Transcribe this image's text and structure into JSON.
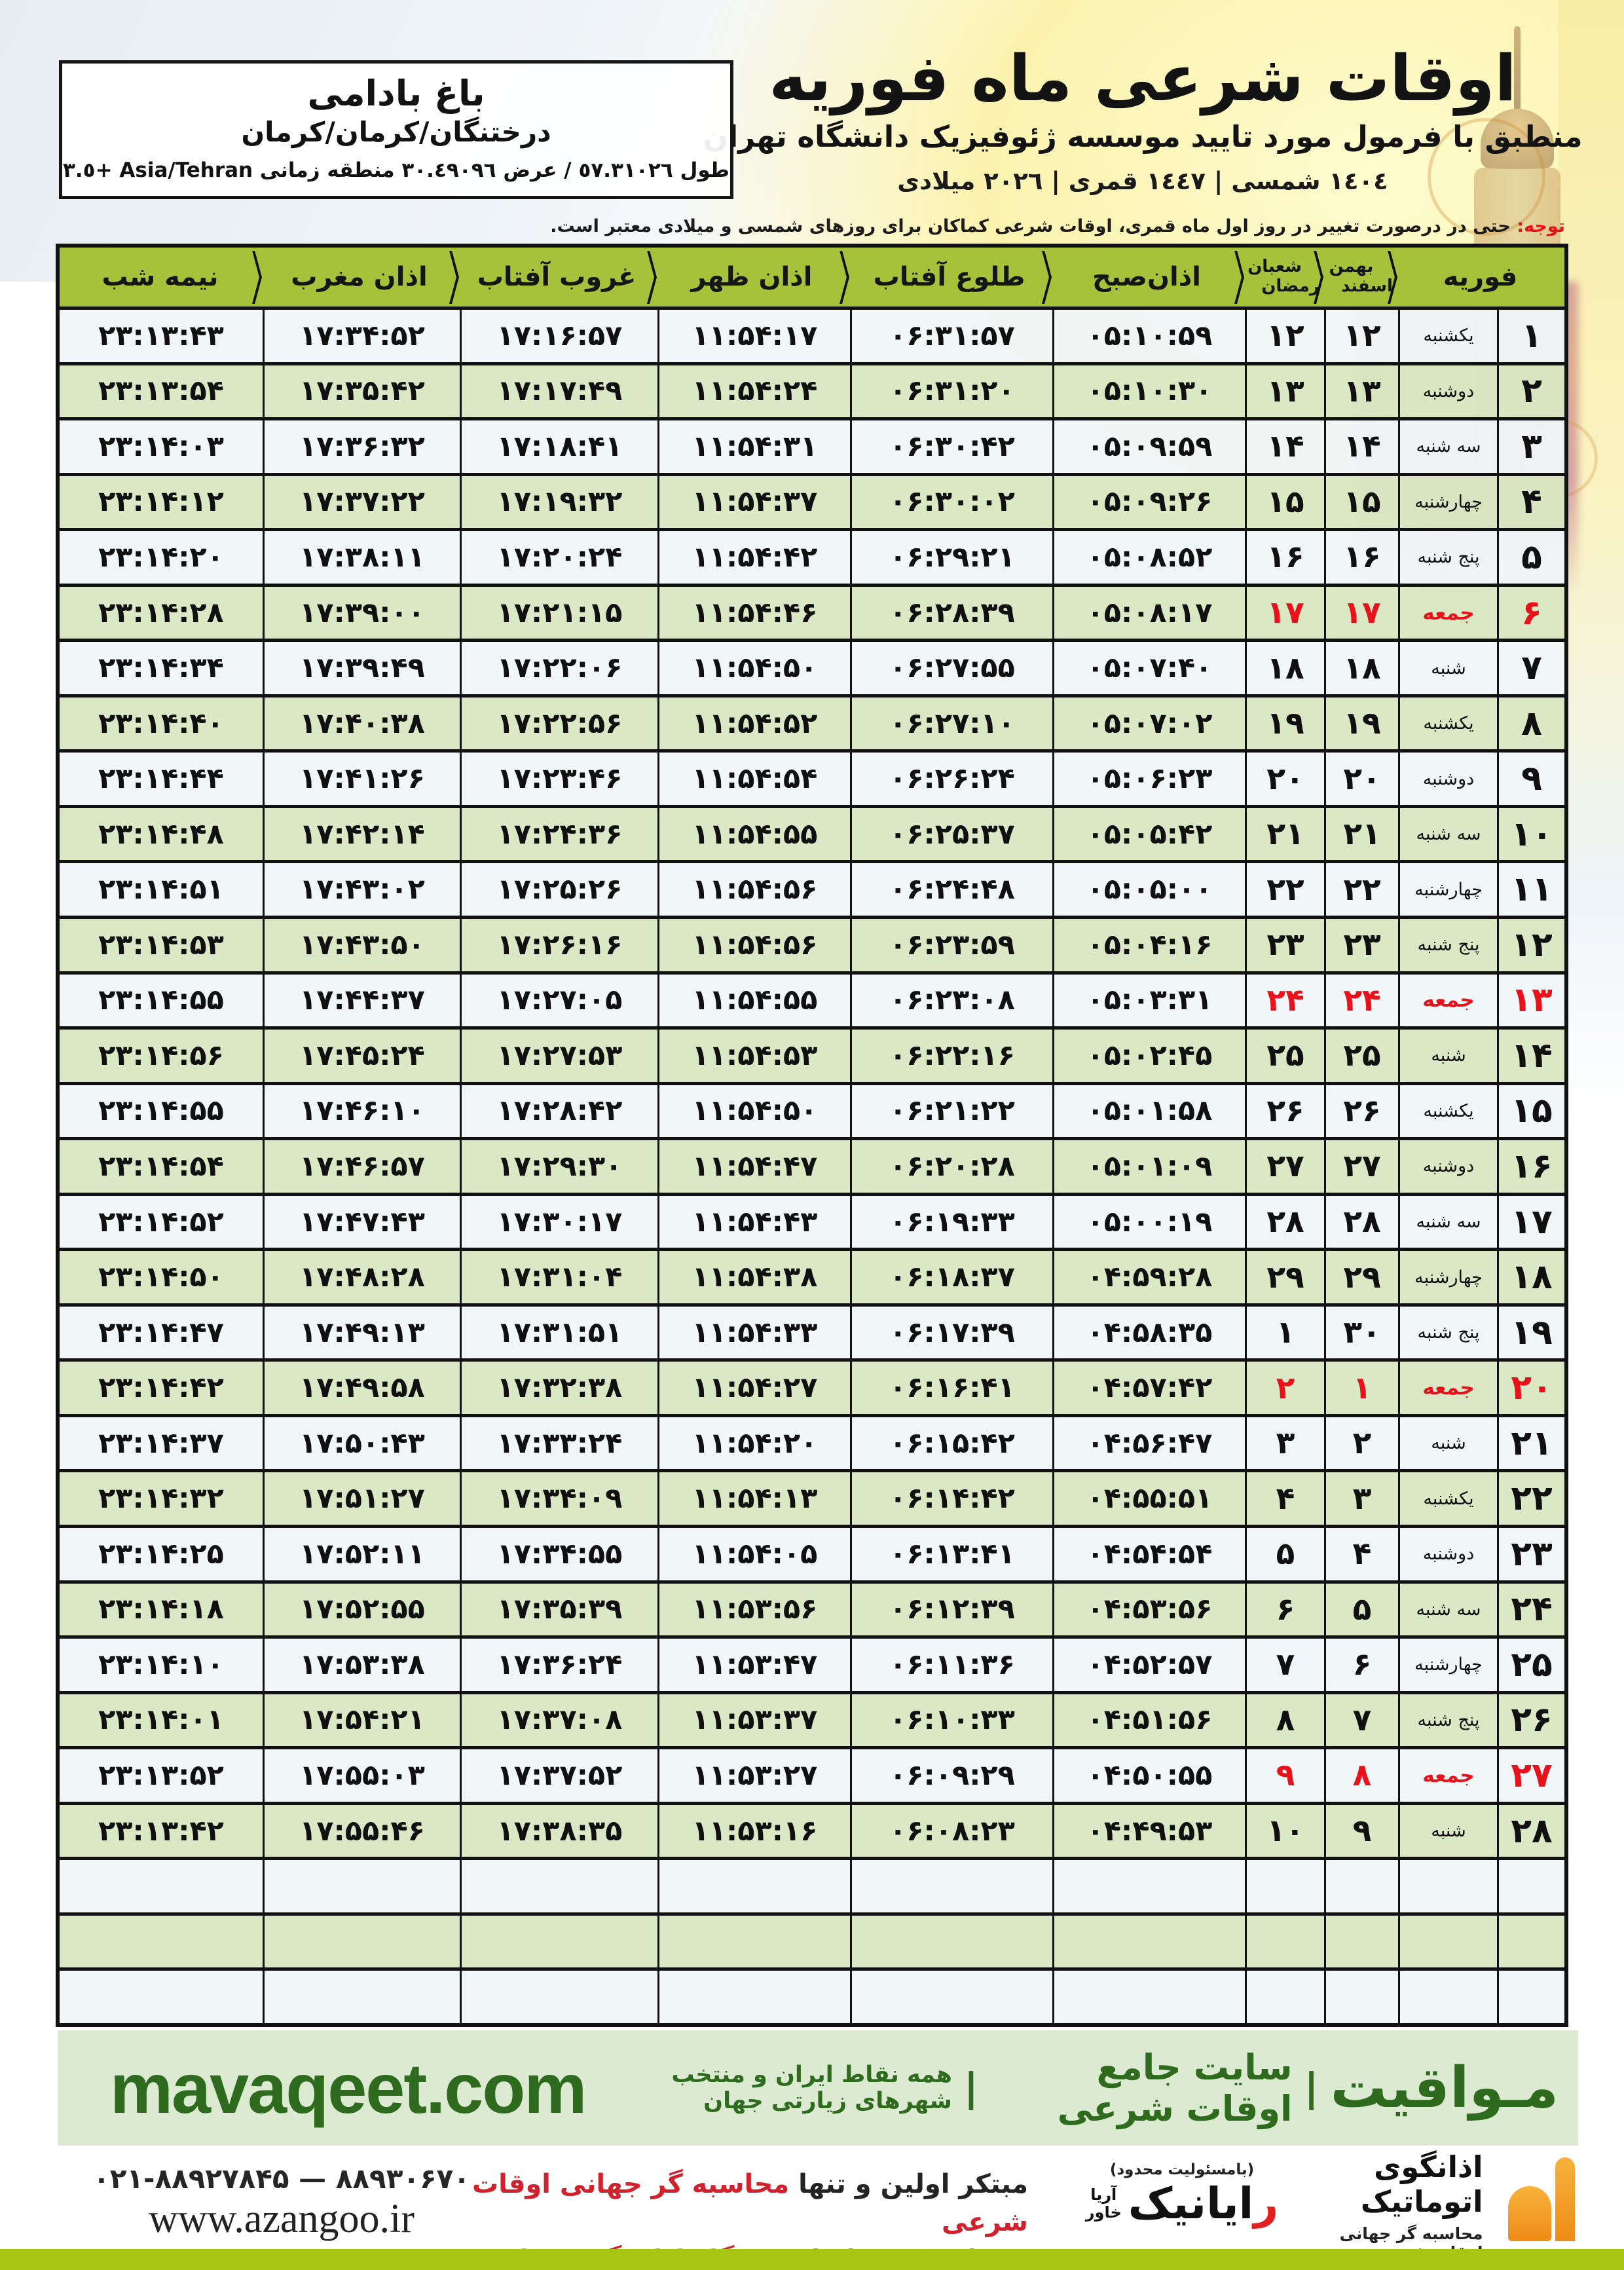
{
  "header": {
    "title": "اوقات شرعی ماه فوریه",
    "subtitle": "منطبق با فرمول مورد تایید موسسه ژئوفیزیک دانشگاه تهران",
    "date_line": "١٤٠٤ شمسی | ١٤٤٧ قمری | ٢٠٢٦ میلادی",
    "location": {
      "name": "باغ بادامی",
      "region": "درختنگان/کرمان/کرمان",
      "coords": "طول ٥٧.٣١٠٢٦ / عرض ٣٠.٤٩٠٩٦ منطقه زمانی Asia/Tehran +٣.٥"
    },
    "note_prefix": "توجه:",
    "note_text": " حتی در درصورت تغییر در روز اول ماه قمری، اوقات شرعی کماکان برای روزهای شمسی و میلادی معتبر است."
  },
  "table": {
    "header_cells": [
      {
        "id": "february",
        "label": "فوریه"
      },
      {
        "id": "persian-month",
        "label": "بهمن",
        "label2": "اسفند"
      },
      {
        "id": "hijri-month",
        "label": "شعبان",
        "label2": "رمضان"
      },
      {
        "id": "azan-sobh",
        "label": "اذان‌صبح"
      },
      {
        "id": "tolu-aftab",
        "label": "طلوع آفتاب"
      },
      {
        "id": "azan-zohr",
        "label": "اذان ظهر"
      },
      {
        "id": "ghorub-aftab",
        "label": "غروب آفتاب"
      },
      {
        "id": "azan-maghreb",
        "label": "اذان مغرب"
      },
      {
        "id": "nime-shab",
        "label": "نیمه شب"
      }
    ],
    "empty_row_count": 3,
    "rows": [
      {
        "d": "۱",
        "w": "یکشنبه",
        "p": "۱۲",
        "h": "۱۲",
        "sobh": "۰۵:۱۰:۵۹",
        "tolu": "۰۶:۳۱:۵۷",
        "zohr": "۱۱:۵۴:۱۷",
        "ghorub": "۱۷:۱۶:۵۷",
        "maghreb": "۱۷:۳۴:۵۲",
        "nime": "۲۳:۱۳:۴۳",
        "friday": false
      },
      {
        "d": "۲",
        "w": "دوشنبه",
        "p": "۱۳",
        "h": "۱۳",
        "sobh": "۰۵:۱۰:۳۰",
        "tolu": "۰۶:۳۱:۲۰",
        "zohr": "۱۱:۵۴:۲۴",
        "ghorub": "۱۷:۱۷:۴۹",
        "maghreb": "۱۷:۳۵:۴۲",
        "nime": "۲۳:۱۳:۵۴",
        "friday": false
      },
      {
        "d": "۳",
        "w": "سه شنبه",
        "p": "۱۴",
        "h": "۱۴",
        "sobh": "۰۵:۰۹:۵۹",
        "tolu": "۰۶:۳۰:۴۲",
        "zohr": "۱۱:۵۴:۳۱",
        "ghorub": "۱۷:۱۸:۴۱",
        "maghreb": "۱۷:۳۶:۳۲",
        "nime": "۲۳:۱۴:۰۳",
        "friday": false
      },
      {
        "d": "۴",
        "w": "چهارشنبه",
        "p": "۱۵",
        "h": "۱۵",
        "sobh": "۰۵:۰۹:۲۶",
        "tolu": "۰۶:۳۰:۰۲",
        "zohr": "۱۱:۵۴:۳۷",
        "ghorub": "۱۷:۱۹:۳۲",
        "maghreb": "۱۷:۳۷:۲۲",
        "nime": "۲۳:۱۴:۱۲",
        "friday": false
      },
      {
        "d": "۵",
        "w": "پنج شنبه",
        "p": "۱۶",
        "h": "۱۶",
        "sobh": "۰۵:۰۸:۵۲",
        "tolu": "۰۶:۲۹:۲۱",
        "zohr": "۱۱:۵۴:۴۲",
        "ghorub": "۱۷:۲۰:۲۴",
        "maghreb": "۱۷:۳۸:۱۱",
        "nime": "۲۳:۱۴:۲۰",
        "friday": false
      },
      {
        "d": "۶",
        "w": "جمعه",
        "p": "۱۷",
        "h": "۱۷",
        "sobh": "۰۵:۰۸:۱۷",
        "tolu": "۰۶:۲۸:۳۹",
        "zohr": "۱۱:۵۴:۴۶",
        "ghorub": "۱۷:۲۱:۱۵",
        "maghreb": "۱۷:۳۹:۰۰",
        "nime": "۲۳:۱۴:۲۸",
        "friday": true
      },
      {
        "d": "۷",
        "w": "شنبه",
        "p": "۱۸",
        "h": "۱۸",
        "sobh": "۰۵:۰۷:۴۰",
        "tolu": "۰۶:۲۷:۵۵",
        "zohr": "۱۱:۵۴:۵۰",
        "ghorub": "۱۷:۲۲:۰۶",
        "maghreb": "۱۷:۳۹:۴۹",
        "nime": "۲۳:۱۴:۳۴",
        "friday": false
      },
      {
        "d": "۸",
        "w": "یکشنبه",
        "p": "۱۹",
        "h": "۱۹",
        "sobh": "۰۵:۰۷:۰۲",
        "tolu": "۰۶:۲۷:۱۰",
        "zohr": "۱۱:۵۴:۵۲",
        "ghorub": "۱۷:۲۲:۵۶",
        "maghreb": "۱۷:۴۰:۳۸",
        "nime": "۲۳:۱۴:۴۰",
        "friday": false
      },
      {
        "d": "۹",
        "w": "دوشنبه",
        "p": "۲۰",
        "h": "۲۰",
        "sobh": "۰۵:۰۶:۲۳",
        "tolu": "۰۶:۲۶:۲۴",
        "zohr": "۱۱:۵۴:۵۴",
        "ghorub": "۱۷:۲۳:۴۶",
        "maghreb": "۱۷:۴۱:۲۶",
        "nime": "۲۳:۱۴:۴۴",
        "friday": false
      },
      {
        "d": "۱۰",
        "w": "سه شنبه",
        "p": "۲۱",
        "h": "۲۱",
        "sobh": "۰۵:۰۵:۴۲",
        "tolu": "۰۶:۲۵:۳۷",
        "zohr": "۱۱:۵۴:۵۵",
        "ghorub": "۱۷:۲۴:۳۶",
        "maghreb": "۱۷:۴۲:۱۴",
        "nime": "۲۳:۱۴:۴۸",
        "friday": false
      },
      {
        "d": "۱۱",
        "w": "چهارشنبه",
        "p": "۲۲",
        "h": "۲۲",
        "sobh": "۰۵:۰۵:۰۰",
        "tolu": "۰۶:۲۴:۴۸",
        "zohr": "۱۱:۵۴:۵۶",
        "ghorub": "۱۷:۲۵:۲۶",
        "maghreb": "۱۷:۴۳:۰۲",
        "nime": "۲۳:۱۴:۵۱",
        "friday": false
      },
      {
        "d": "۱۲",
        "w": "پنج شنبه",
        "p": "۲۳",
        "h": "۲۳",
        "sobh": "۰۵:۰۴:۱۶",
        "tolu": "۰۶:۲۳:۵۹",
        "zohr": "۱۱:۵۴:۵۶",
        "ghorub": "۱۷:۲۶:۱۶",
        "maghreb": "۱۷:۴۳:۵۰",
        "nime": "۲۳:۱۴:۵۳",
        "friday": false
      },
      {
        "d": "۱۳",
        "w": "جمعه",
        "p": "۲۴",
        "h": "۲۴",
        "sobh": "۰۵:۰۳:۳۱",
        "tolu": "۰۶:۲۳:۰۸",
        "zohr": "۱۱:۵۴:۵۵",
        "ghorub": "۱۷:۲۷:۰۵",
        "maghreb": "۱۷:۴۴:۳۷",
        "nime": "۲۳:۱۴:۵۵",
        "friday": true
      },
      {
        "d": "۱۴",
        "w": "شنبه",
        "p": "۲۵",
        "h": "۲۵",
        "sobh": "۰۵:۰۲:۴۵",
        "tolu": "۰۶:۲۲:۱۶",
        "zohr": "۱۱:۵۴:۵۳",
        "ghorub": "۱۷:۲۷:۵۳",
        "maghreb": "۱۷:۴۵:۲۴",
        "nime": "۲۳:۱۴:۵۶",
        "friday": false
      },
      {
        "d": "۱۵",
        "w": "یکشنبه",
        "p": "۲۶",
        "h": "۲۶",
        "sobh": "۰۵:۰۱:۵۸",
        "tolu": "۰۶:۲۱:۲۲",
        "zohr": "۱۱:۵۴:۵۰",
        "ghorub": "۱۷:۲۸:۴۲",
        "maghreb": "۱۷:۴۶:۱۰",
        "nime": "۲۳:۱۴:۵۵",
        "friday": false
      },
      {
        "d": "۱۶",
        "w": "دوشنبه",
        "p": "۲۷",
        "h": "۲۷",
        "sobh": "۰۵:۰۱:۰۹",
        "tolu": "۰۶:۲۰:۲۸",
        "zohr": "۱۱:۵۴:۴۷",
        "ghorub": "۱۷:۲۹:۳۰",
        "maghreb": "۱۷:۴۶:۵۷",
        "nime": "۲۳:۱۴:۵۴",
        "friday": false
      },
      {
        "d": "۱۷",
        "w": "سه شنبه",
        "p": "۲۸",
        "h": "۲۸",
        "sobh": "۰۵:۰۰:۱۹",
        "tolu": "۰۶:۱۹:۳۳",
        "zohr": "۱۱:۵۴:۴۳",
        "ghorub": "۱۷:۳۰:۱۷",
        "maghreb": "۱۷:۴۷:۴۳",
        "nime": "۲۳:۱۴:۵۲",
        "friday": false
      },
      {
        "d": "۱۸",
        "w": "چهارشنبه",
        "p": "۲۹",
        "h": "۲۹",
        "sobh": "۰۴:۵۹:۲۸",
        "tolu": "۰۶:۱۸:۳۷",
        "zohr": "۱۱:۵۴:۳۸",
        "ghorub": "۱۷:۳۱:۰۴",
        "maghreb": "۱۷:۴۸:۲۸",
        "nime": "۲۳:۱۴:۵۰",
        "friday": false
      },
      {
        "d": "۱۹",
        "w": "پنج شنبه",
        "p": "۳۰",
        "h": "۱",
        "sobh": "۰۴:۵۸:۳۵",
        "tolu": "۰۶:۱۷:۳۹",
        "zohr": "۱۱:۵۴:۳۳",
        "ghorub": "۱۷:۳۱:۵۱",
        "maghreb": "۱۷:۴۹:۱۳",
        "nime": "۲۳:۱۴:۴۷",
        "friday": false
      },
      {
        "d": "۲۰",
        "w": "جمعه",
        "p": "۱",
        "h": "۲",
        "sobh": "۰۴:۵۷:۴۲",
        "tolu": "۰۶:۱۶:۴۱",
        "zohr": "۱۱:۵۴:۲۷",
        "ghorub": "۱۷:۳۲:۳۸",
        "maghreb": "۱۷:۴۹:۵۸",
        "nime": "۲۳:۱۴:۴۲",
        "friday": true
      },
      {
        "d": "۲۱",
        "w": "شنبه",
        "p": "۲",
        "h": "۳",
        "sobh": "۰۴:۵۶:۴۷",
        "tolu": "۰۶:۱۵:۴۲",
        "zohr": "۱۱:۵۴:۲۰",
        "ghorub": "۱۷:۳۳:۲۴",
        "maghreb": "۱۷:۵۰:۴۳",
        "nime": "۲۳:۱۴:۳۷",
        "friday": false
      },
      {
        "d": "۲۲",
        "w": "یکشنبه",
        "p": "۳",
        "h": "۴",
        "sobh": "۰۴:۵۵:۵۱",
        "tolu": "۰۶:۱۴:۴۲",
        "zohr": "۱۱:۵۴:۱۳",
        "ghorub": "۱۷:۳۴:۰۹",
        "maghreb": "۱۷:۵۱:۲۷",
        "nime": "۲۳:۱۴:۳۲",
        "friday": false
      },
      {
        "d": "۲۳",
        "w": "دوشنبه",
        "p": "۴",
        "h": "۵",
        "sobh": "۰۴:۵۴:۵۴",
        "tolu": "۰۶:۱۳:۴۱",
        "zohr": "۱۱:۵۴:۰۵",
        "ghorub": "۱۷:۳۴:۵۵",
        "maghreb": "۱۷:۵۲:۱۱",
        "nime": "۲۳:۱۴:۲۵",
        "friday": false
      },
      {
        "d": "۲۴",
        "w": "سه شنبه",
        "p": "۵",
        "h": "۶",
        "sobh": "۰۴:۵۳:۵۶",
        "tolu": "۰۶:۱۲:۳۹",
        "zohr": "۱۱:۵۳:۵۶",
        "ghorub": "۱۷:۳۵:۳۹",
        "maghreb": "۱۷:۵۲:۵۵",
        "nime": "۲۳:۱۴:۱۸",
        "friday": false
      },
      {
        "d": "۲۵",
        "w": "چهارشنبه",
        "p": "۶",
        "h": "۷",
        "sobh": "۰۴:۵۲:۵۷",
        "tolu": "۰۶:۱۱:۳۶",
        "zohr": "۱۱:۵۳:۴۷",
        "ghorub": "۱۷:۳۶:۲۴",
        "maghreb": "۱۷:۵۳:۳۸",
        "nime": "۲۳:۱۴:۱۰",
        "friday": false
      },
      {
        "d": "۲۶",
        "w": "پنج شنبه",
        "p": "۷",
        "h": "۸",
        "sobh": "۰۴:۵۱:۵۶",
        "tolu": "۰۶:۱۰:۳۳",
        "zohr": "۱۱:۵۳:۳۷",
        "ghorub": "۱۷:۳۷:۰۸",
        "maghreb": "۱۷:۵۴:۲۱",
        "nime": "۲۳:۱۴:۰۱",
        "friday": false
      },
      {
        "d": "۲۷",
        "w": "جمعه",
        "p": "۸",
        "h": "۹",
        "sobh": "۰۴:۵۰:۵۵",
        "tolu": "۰۶:۰۹:۲۹",
        "zohr": "۱۱:۵۳:۲۷",
        "ghorub": "۱۷:۳۷:۵۲",
        "maghreb": "۱۷:۵۵:۰۳",
        "nime": "۲۳:۱۳:۵۲",
        "friday": true
      },
      {
        "d": "۲۸",
        "w": "شنبه",
        "p": "۹",
        "h": "۱۰",
        "sobh": "۰۴:۴۹:۵۳",
        "tolu": "۰۶:۰۸:۲۳",
        "zohr": "۱۱:۵۳:۱۶",
        "ghorub": "۱۷:۳۸:۳۵",
        "maghreb": "۱۷:۵۵:۴۶",
        "nime": "۲۳:۱۳:۴۲",
        "friday": false
      }
    ]
  },
  "footer": {
    "site_band": {
      "domain": "mavaqeet.com",
      "name": "مـواقیت",
      "sep": "|",
      "tag1": "سایت جامع اوقات شرعی",
      "tag2": "همه نقاط ایران و منتخب شهرهای زیارتی جهان"
    },
    "bottom": {
      "phone": "۰۲۱-۸۸۹۲۷۸۴۵ — ۸۸۹۳۰۶۷۰",
      "url": "www.azangoo.ir",
      "line1_black": "مبتکر اولین و تنها ",
      "line1_red": "محاسبه گر جهانی اوقات شرعی",
      "line2_black": "و تولید کننده انواع ",
      "line2_red": "دستگاه اذان گوی تمام خودکار ماهواره ای",
      "rayanik_top": "(بامسئولیت محدود)",
      "rayanik_initial": "ر",
      "rayanik_rest": "ایانیک",
      "rayanik_side1": "خاور",
      "rayanik_side2": "آریا",
      "azangoo_title": "اذانگوی اتوماتیک",
      "azangoo_sub": "محاسبه گر جهانی اوقات شرعی",
      "azangoo_latin_a": "a",
      "azangoo_latin_rest": "zangoo"
    }
  },
  "colors": {
    "header_green": "#a6c23a",
    "row_green": "#d8e7c2",
    "row_white": "#f0f5f9",
    "friday_red": "#e8121a",
    "band_bg": "#dcead2",
    "band_text": "#2e6b1e",
    "bottom_bar_green": "#a9c513",
    "promo_red": "#d0212d",
    "azangoo_orange": "#ee8c16"
  }
}
